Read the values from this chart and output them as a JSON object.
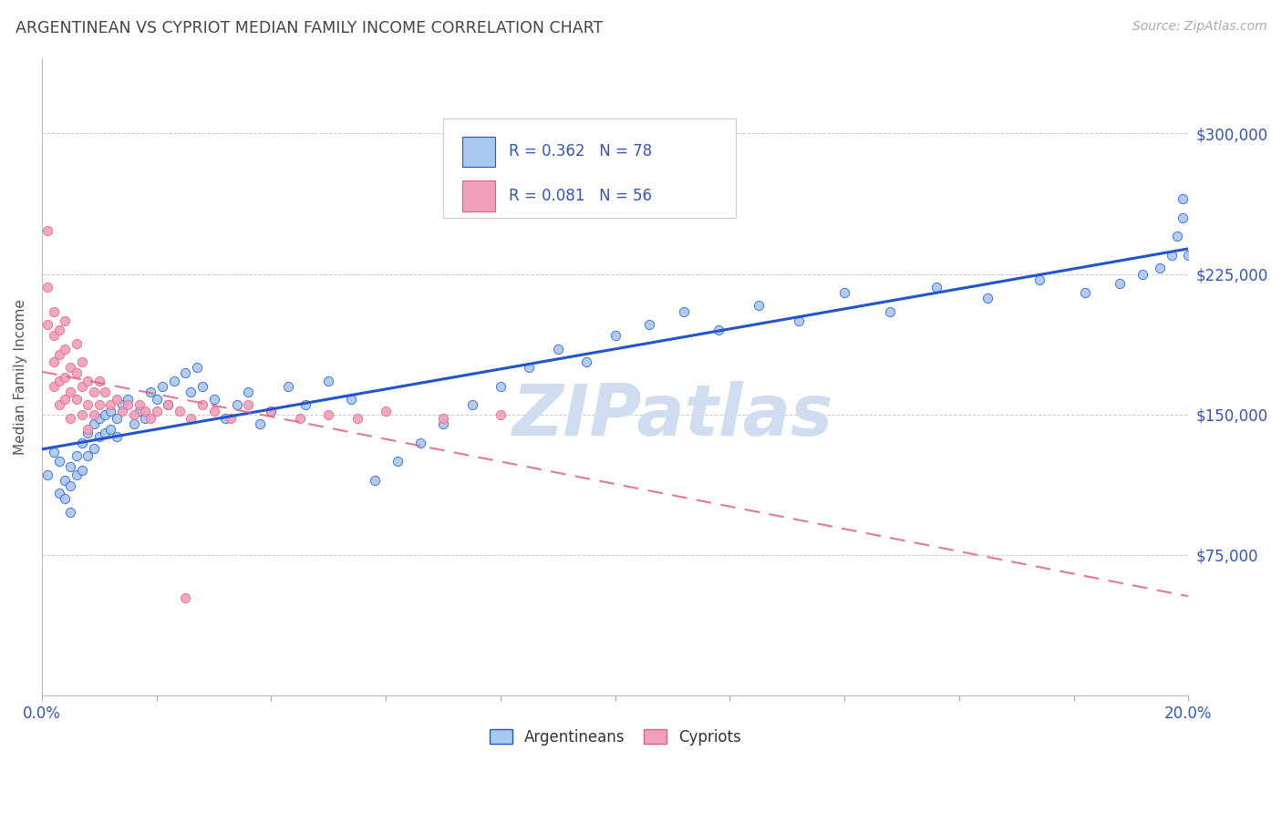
{
  "title": "ARGENTINEAN VS CYPRIOT MEDIAN FAMILY INCOME CORRELATION CHART",
  "source": "Source: ZipAtlas.com",
  "ylabel": "Median Family Income",
  "ytick_values": [
    75000,
    150000,
    225000,
    300000
  ],
  "yright_labels": [
    "$75,000",
    "$150,000",
    "$225,000",
    "$300,000"
  ],
  "xlim": [
    0.0,
    0.2
  ],
  "ylim": [
    0,
    340000
  ],
  "color_blue": "#A8C8F0",
  "color_pink": "#F0A0BC",
  "color_blue_dark": "#2255CC",
  "color_pink_dark": "#E06080",
  "color_axis_label": "#3355BB",
  "color_title": "#444444",
  "color_source": "#AAAAAA",
  "watermark_text": "ZIPatlas",
  "watermark_color": "#D0DCF0",
  "argentineans_x": [
    0.001,
    0.002,
    0.003,
    0.003,
    0.004,
    0.004,
    0.005,
    0.005,
    0.005,
    0.006,
    0.006,
    0.007,
    0.007,
    0.008,
    0.008,
    0.009,
    0.009,
    0.01,
    0.01,
    0.011,
    0.011,
    0.012,
    0.012,
    0.013,
    0.013,
    0.014,
    0.015,
    0.016,
    0.017,
    0.018,
    0.019,
    0.02,
    0.021,
    0.022,
    0.023,
    0.025,
    0.026,
    0.027,
    0.028,
    0.03,
    0.032,
    0.034,
    0.036,
    0.038,
    0.04,
    0.043,
    0.046,
    0.05,
    0.054,
    0.058,
    0.062,
    0.066,
    0.07,
    0.075,
    0.08,
    0.085,
    0.09,
    0.095,
    0.1,
    0.106,
    0.112,
    0.118,
    0.125,
    0.132,
    0.14,
    0.148,
    0.156,
    0.165,
    0.174,
    0.182,
    0.188,
    0.192,
    0.195,
    0.197,
    0.198,
    0.199,
    0.199,
    0.2
  ],
  "argentineans_y": [
    118000,
    130000,
    108000,
    125000,
    115000,
    105000,
    122000,
    112000,
    98000,
    128000,
    118000,
    135000,
    120000,
    140000,
    128000,
    145000,
    132000,
    148000,
    138000,
    150000,
    140000,
    152000,
    142000,
    148000,
    138000,
    155000,
    158000,
    145000,
    152000,
    148000,
    162000,
    158000,
    165000,
    155000,
    168000,
    172000,
    162000,
    175000,
    165000,
    158000,
    148000,
    155000,
    162000,
    145000,
    152000,
    165000,
    155000,
    168000,
    158000,
    115000,
    125000,
    135000,
    145000,
    155000,
    165000,
    175000,
    185000,
    178000,
    192000,
    198000,
    205000,
    195000,
    208000,
    200000,
    215000,
    205000,
    218000,
    212000,
    222000,
    215000,
    220000,
    225000,
    228000,
    235000,
    245000,
    255000,
    265000,
    235000
  ],
  "cypriots_x": [
    0.001,
    0.001,
    0.001,
    0.002,
    0.002,
    0.002,
    0.002,
    0.003,
    0.003,
    0.003,
    0.003,
    0.004,
    0.004,
    0.004,
    0.004,
    0.005,
    0.005,
    0.005,
    0.006,
    0.006,
    0.006,
    0.007,
    0.007,
    0.007,
    0.008,
    0.008,
    0.008,
    0.009,
    0.009,
    0.01,
    0.01,
    0.011,
    0.012,
    0.013,
    0.014,
    0.015,
    0.016,
    0.017,
    0.018,
    0.019,
    0.02,
    0.022,
    0.024,
    0.026,
    0.028,
    0.03,
    0.033,
    0.036,
    0.04,
    0.045,
    0.05,
    0.055,
    0.06,
    0.07,
    0.08,
    0.025
  ],
  "cypriots_y": [
    248000,
    218000,
    198000,
    205000,
    192000,
    178000,
    165000,
    195000,
    182000,
    168000,
    155000,
    200000,
    185000,
    170000,
    158000,
    175000,
    162000,
    148000,
    188000,
    172000,
    158000,
    178000,
    165000,
    150000,
    168000,
    155000,
    142000,
    162000,
    150000,
    168000,
    155000,
    162000,
    155000,
    158000,
    152000,
    155000,
    150000,
    155000,
    152000,
    148000,
    152000,
    155000,
    152000,
    148000,
    155000,
    152000,
    148000,
    155000,
    152000,
    148000,
    150000,
    148000,
    152000,
    148000,
    150000,
    52000
  ]
}
